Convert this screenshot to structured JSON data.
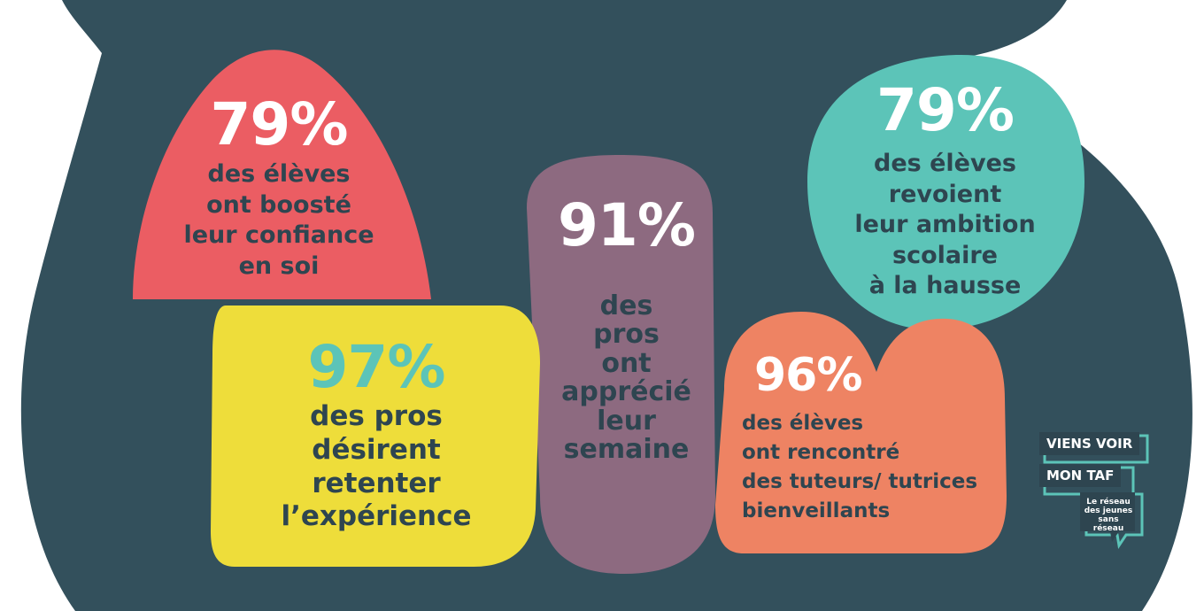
{
  "colors": {
    "dark_background": "#33505c",
    "coral": "#eb5d63",
    "yellow": "#eedd3a",
    "plum": "#8d6a80",
    "teal": "#5cc4b8",
    "orange": "#ee8363",
    "text_dark": "#2e4550",
    "white": "#ffffff"
  },
  "stats": {
    "eleves_confiance": {
      "percent": "79%",
      "text": "des élèves\nont boosté\nleur confiance\nen soi"
    },
    "pros_retenter": {
      "percent": "97%",
      "text": "des pros\ndésirent\nretenter\nl’expérience"
    },
    "pros_semaine": {
      "percent": "91%",
      "text": "des\npros\nont\napprécié\nleur\nsemaine"
    },
    "eleves_ambition": {
      "percent": "79%",
      "text": "des élèves\nrevoient\nleur ambition\nscolaire\nà la hausse"
    },
    "eleves_tuteurs": {
      "percent": "96%",
      "text": "des élèves\nont rencontré\ndes tuteurs/ tutrices\nbienveillants"
    }
  },
  "logo": {
    "line1": "VIENS VOIR",
    "line2": "MON TAF",
    "tagline": "Le réseau\ndes jeunes\nsans réseau"
  }
}
